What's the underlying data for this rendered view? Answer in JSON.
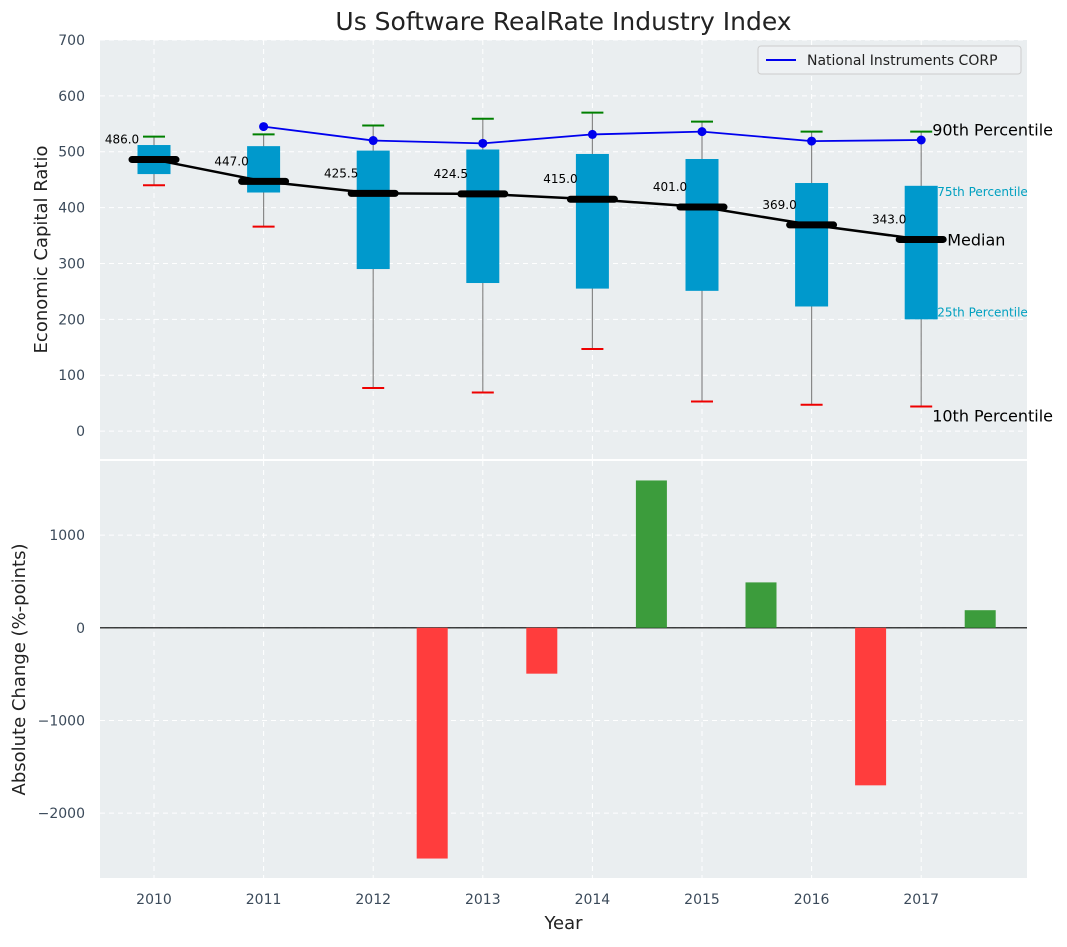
{
  "chart_data": {
    "type": "box+line+bar",
    "title": "Us Software RealRate Industry Index",
    "colors": {
      "panel_bg": "#eaeef0",
      "box": "#0099cc",
      "whisker_top": "#008000",
      "whisker_bottom": "#ee0000",
      "median": "#000000",
      "company_line": "#0000ee",
      "bar_positive": "#3c9c3c",
      "bar_negative": "#ff3d3d",
      "band_label": "#00a0c0",
      "tick_text": "#3b4a5a"
    },
    "x": {
      "label": "Year",
      "categories": [
        "2010",
        "2011",
        "2012",
        "2013",
        "2014",
        "2015",
        "2016",
        "2017"
      ]
    },
    "top_panel": {
      "ylabel": "Economic Capital Ratio",
      "ylim": [
        -50,
        700
      ],
      "yticks": [
        0,
        100,
        200,
        300,
        400,
        500,
        600,
        700
      ],
      "p10": [
        440,
        366,
        77,
        69,
        147,
        53,
        47,
        44
      ],
      "p25": [
        460,
        427,
        290,
        265,
        255,
        251,
        223,
        200
      ],
      "median": [
        486.0,
        447.0,
        425.5,
        424.5,
        415.0,
        401.0,
        369.0,
        343.0
      ],
      "median_labels": [
        "486.0",
        "447.0",
        "425.5",
        "424.5",
        "415.0",
        "401.0",
        "369.0",
        "343.0"
      ],
      "p75": [
        512,
        510,
        502,
        504,
        496,
        487,
        444,
        439
      ],
      "p90": [
        527,
        531,
        547,
        559,
        570,
        554,
        536,
        536
      ],
      "legend": "National Instruments CORP",
      "company_years": [
        "2011",
        "2012",
        "2013",
        "2014",
        "2015",
        "2016",
        "2017"
      ],
      "company_values": [
        545,
        520,
        515,
        531,
        536,
        519,
        521
      ],
      "band_labels": {
        "p90": "90th Percentile",
        "p75": "75th Percentile",
        "median": "Median",
        "p25": "25th Percentile",
        "p10": "10th Percentile"
      }
    },
    "bottom_panel": {
      "ylabel": "Absolute Change (%-points)",
      "ylim": [
        -2700,
        1800
      ],
      "yticks": [
        -2000,
        -1000,
        0,
        1000
      ],
      "ytick_labels": [
        "−2000",
        "−1000",
        "0",
        "1000"
      ],
      "values": [
        0,
        0,
        -2490,
        -495,
        1590,
        490,
        -1700,
        190
      ]
    }
  }
}
